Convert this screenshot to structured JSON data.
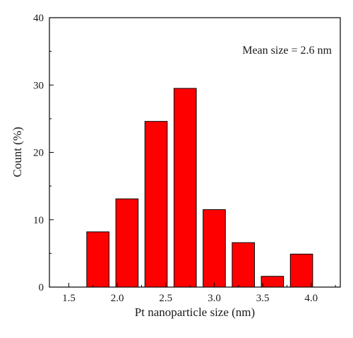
{
  "chart_data": {
    "type": "bar",
    "categories": [
      1.8,
      2.1,
      2.4,
      2.7,
      3.0,
      3.3,
      3.6,
      3.9
    ],
    "values": [
      8.2,
      13.1,
      24.6,
      29.5,
      11.5,
      6.6,
      1.6,
      4.9
    ],
    "xlabel": "Pt nanoparticle size (nm)",
    "ylabel": "Count (%)",
    "xlim": [
      1.3,
      4.3
    ],
    "ylim": [
      0,
      40
    ],
    "xticks": [
      "1.5",
      "2.0",
      "2.5",
      "3.0",
      "3.5",
      "4.0"
    ],
    "yticks": [
      "0",
      "10",
      "20",
      "30",
      "40"
    ],
    "annotation": "Mean size = 2.6 nm",
    "bar_color": "#ff0000",
    "bar_edge_color": "#000000",
    "grid": false,
    "legend": "none"
  }
}
